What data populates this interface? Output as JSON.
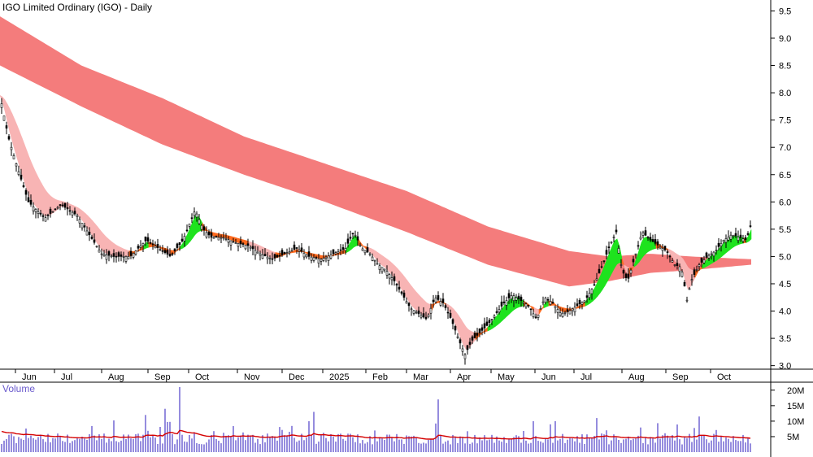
{
  "title": "IGO Limited Ordinary (IGO) - Daily",
  "chart_data": [
    {
      "type": "candlestick",
      "title": "IGO Limited Ordinary (IGO) - Daily",
      "x_labels": [
        "Jun",
        "Jul",
        "Aug",
        "Sep",
        "Oct",
        "Nov",
        "Dec",
        "2025",
        "Feb",
        "Mar",
        "Apr",
        "May",
        "Jun",
        "Jul",
        "Aug",
        "Sep",
        "Oct"
      ],
      "y_ticks": [
        3.0,
        3.5,
        4.0,
        4.5,
        5.0,
        5.5,
        6.0,
        6.5,
        7.0,
        7.5,
        8.0,
        8.5,
        9.0,
        9.5
      ],
      "ylim": [
        2.95,
        9.7
      ],
      "grid": false,
      "price_anchors": [
        [
          0,
          7.95
        ],
        [
          10,
          7.2
        ],
        [
          22,
          6.6
        ],
        [
          35,
          6.0
        ],
        [
          55,
          5.7
        ],
        [
          75,
          5.95
        ],
        [
          95,
          5.75
        ],
        [
          112,
          5.35
        ],
        [
          125,
          5.05
        ],
        [
          140,
          5.0
        ],
        [
          160,
          5.0
        ],
        [
          180,
          5.3
        ],
        [
          195,
          5.15
        ],
        [
          210,
          5.0
        ],
        [
          225,
          5.3
        ],
        [
          240,
          5.85
        ],
        [
          250,
          5.5
        ],
        [
          260,
          5.35
        ],
        [
          275,
          5.35
        ],
        [
          290,
          5.25
        ],
        [
          305,
          5.2
        ],
        [
          320,
          5.05
        ],
        [
          335,
          4.95
        ],
        [
          350,
          5.05
        ],
        [
          365,
          5.15
        ],
        [
          380,
          5.0
        ],
        [
          395,
          4.95
        ],
        [
          410,
          5.05
        ],
        [
          425,
          5.15
        ],
        [
          435,
          5.45
        ],
        [
          445,
          5.15
        ],
        [
          455,
          5.05
        ],
        [
          465,
          4.85
        ],
        [
          475,
          4.75
        ],
        [
          485,
          4.55
        ],
        [
          495,
          4.3
        ],
        [
          505,
          4.05
        ],
        [
          515,
          3.95
        ],
        [
          525,
          3.85
        ],
        [
          535,
          4.25
        ],
        [
          545,
          4.15
        ],
        [
          555,
          3.85
        ],
        [
          565,
          3.45
        ],
        [
          572,
          3.2
        ],
        [
          580,
          3.45
        ],
        [
          590,
          3.6
        ],
        [
          600,
          3.75
        ],
        [
          610,
          3.95
        ],
        [
          620,
          4.15
        ],
        [
          630,
          4.3
        ],
        [
          640,
          4.2
        ],
        [
          650,
          4.1
        ],
        [
          660,
          3.85
        ],
        [
          670,
          4.25
        ],
        [
          680,
          4.15
        ],
        [
          690,
          3.95
        ],
        [
          700,
          4.0
        ],
        [
          710,
          4.1
        ],
        [
          720,
          4.2
        ],
        [
          730,
          4.45
        ],
        [
          740,
          4.8
        ],
        [
          750,
          5.2
        ],
        [
          758,
          5.45
        ],
        [
          765,
          4.75
        ],
        [
          772,
          4.55
        ],
        [
          780,
          4.95
        ],
        [
          790,
          5.45
        ],
        [
          800,
          5.3
        ],
        [
          810,
          5.2
        ],
        [
          820,
          5.1
        ],
        [
          830,
          4.85
        ],
        [
          838,
          4.8
        ],
        [
          845,
          4.2
        ],
        [
          850,
          4.55
        ],
        [
          860,
          4.85
        ],
        [
          870,
          5.0
        ],
        [
          880,
          5.1
        ],
        [
          890,
          5.3
        ],
        [
          900,
          5.4
        ],
        [
          910,
          5.35
        ],
        [
          918,
          5.3
        ],
        [
          924,
          5.6
        ]
      ],
      "guppy_long_band": {
        "color": "#f47c7c",
        "upper": [
          [
            0,
            9.4
          ],
          [
            100,
            8.5
          ],
          [
            200,
            7.9
          ],
          [
            300,
            7.2
          ],
          [
            400,
            6.7
          ],
          [
            500,
            6.2
          ],
          [
            600,
            5.55
          ],
          [
            700,
            5.1
          ],
          [
            750,
            5.0
          ],
          [
            800,
            5.05
          ],
          [
            850,
            5.0
          ],
          [
            924,
            4.95
          ]
        ],
        "lower": [
          [
            0,
            8.5
          ],
          [
            100,
            7.75
          ],
          [
            200,
            7.05
          ],
          [
            300,
            6.5
          ],
          [
            400,
            6.0
          ],
          [
            500,
            5.45
          ],
          [
            600,
            4.85
          ],
          [
            700,
            4.45
          ],
          [
            750,
            4.55
          ],
          [
            800,
            4.7
          ],
          [
            850,
            4.75
          ],
          [
            924,
            4.85
          ]
        ]
      },
      "guppy_short_band": {
        "color_down": "#f8b4b4",
        "color_neutral": "#ff6a1f",
        "color_up": "#1ee31e"
      },
      "price_ticks_label": "price"
    },
    {
      "type": "bar",
      "title": "Volume",
      "y_ticks": [
        "20M",
        "15M",
        "10M",
        "5M"
      ],
      "ylim": [
        0,
        21000000
      ],
      "spikes": [
        [
          180,
          12000000
        ],
        [
          203,
          14000000
        ],
        [
          220,
          21000000
        ],
        [
          385,
          13000000
        ],
        [
          540,
          17000000
        ],
        [
          657,
          10000000
        ],
        [
          735,
          11000000
        ],
        [
          860,
          11500000
        ]
      ],
      "moving_average_color": "#d40000",
      "bar_color": "#7b6fd6"
    }
  ],
  "volume_label": "Volume"
}
